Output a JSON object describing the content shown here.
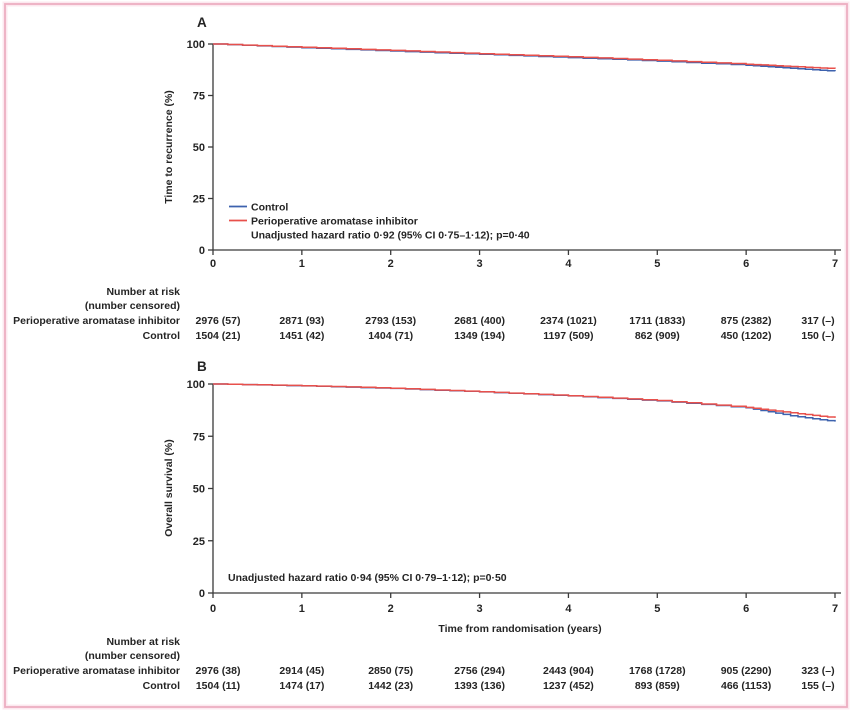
{
  "figure": {
    "background": "#ffffff",
    "frame_color": "#edaec2",
    "frame_halo_color": "#fce8ef",
    "axis_color": "#3a3a3a",
    "text_color": "#242424"
  },
  "chart_data": [
    {
      "type": "line",
      "subtype": "kaplan-meier",
      "panel_label": "A",
      "title": "",
      "xlabel": "",
      "ylabel": "Time to recurrence (%)",
      "xlim": [
        0,
        7
      ],
      "ylim": [
        0,
        100
      ],
      "xticks": [
        "0",
        "1",
        "2",
        "3",
        "4",
        "5",
        "6",
        "7"
      ],
      "yticks": [
        "0",
        "25",
        "50",
        "75",
        "100"
      ],
      "grid": false,
      "legend_position": "lower-left-inside",
      "x": [
        0,
        1,
        2,
        3,
        4,
        5,
        6,
        6.5,
        7
      ],
      "series": [
        {
          "name": "Control",
          "color": "#3d62ae",
          "values": [
            100,
            98.2,
            96.6,
            95.0,
            93.4,
            91.7,
            89.7,
            88.2,
            86.8
          ]
        },
        {
          "name": "Perioperative aromatase inhibitor",
          "color": "#e8504b",
          "values": [
            100,
            98.4,
            96.9,
            95.3,
            93.8,
            92.1,
            90.2,
            89.1,
            88.0
          ]
        }
      ],
      "annotation": "Unadjusted hazard ratio 0·92 (95% CI 0·75–1·12); p=0·40"
    },
    {
      "type": "line",
      "subtype": "kaplan-meier",
      "panel_label": "B",
      "title": "",
      "xlabel": "Time from randomisation (years)",
      "ylabel": "Overall survival (%)",
      "xlim": [
        0,
        7
      ],
      "ylim": [
        0,
        100
      ],
      "xticks": [
        "0",
        "1",
        "2",
        "3",
        "4",
        "5",
        "6",
        "7"
      ],
      "yticks": [
        "0",
        "25",
        "50",
        "75",
        "100"
      ],
      "grid": false,
      "legend_position": "none",
      "x": [
        0,
        1,
        2,
        3,
        4,
        5,
        6,
        6.5,
        7
      ],
      "series": [
        {
          "name": "Control",
          "color": "#3d62ae",
          "values": [
            100,
            99.1,
            97.9,
            96.2,
            94.3,
            91.9,
            88.6,
            84.8,
            82.0
          ]
        },
        {
          "name": "Perioperative aromatase inhibitor",
          "color": "#e8504b",
          "values": [
            100,
            99.2,
            98.0,
            96.3,
            94.4,
            92.1,
            88.8,
            86.2,
            83.8
          ]
        }
      ],
      "annotation": "Unadjusted hazard ratio 0·94 (95% CI 0·79–1·12); p=0·50"
    }
  ],
  "risk_tables": [
    {
      "header_line1": "Number at risk",
      "header_line2": "(number censored)",
      "rows": [
        {
          "label": "Perioperative aromatase inhibitor",
          "values": [
            "2976 (57)",
            "2871 (93)",
            "2793 (153)",
            "2681 (400)",
            "2374 (1021)",
            "1711 (1833)",
            "875 (2382)",
            "317 (–)"
          ]
        },
        {
          "label": "Control",
          "values": [
            "1504 (21)",
            "1451 (42)",
            "1404 (71)",
            "1349 (194)",
            "1197 (509)",
            "862 (909)",
            "450 (1202)",
            "150 (–)"
          ]
        }
      ]
    },
    {
      "header_line1": "Number at risk",
      "header_line2": "(number censored)",
      "rows": [
        {
          "label": "Perioperative aromatase inhibitor",
          "values": [
            "2976 (38)",
            "2914 (45)",
            "2850 (75)",
            "2756 (294)",
            "2443 (904)",
            "1768 (1728)",
            "905 (2290)",
            "323 (–)"
          ]
        },
        {
          "label": "Control",
          "values": [
            "1504 (11)",
            "1474 (17)",
            "1442 (23)",
            "1393 (136)",
            "1237 (452)",
            "893 (859)",
            "466 (1153)",
            "155 (–)"
          ]
        }
      ]
    }
  ]
}
